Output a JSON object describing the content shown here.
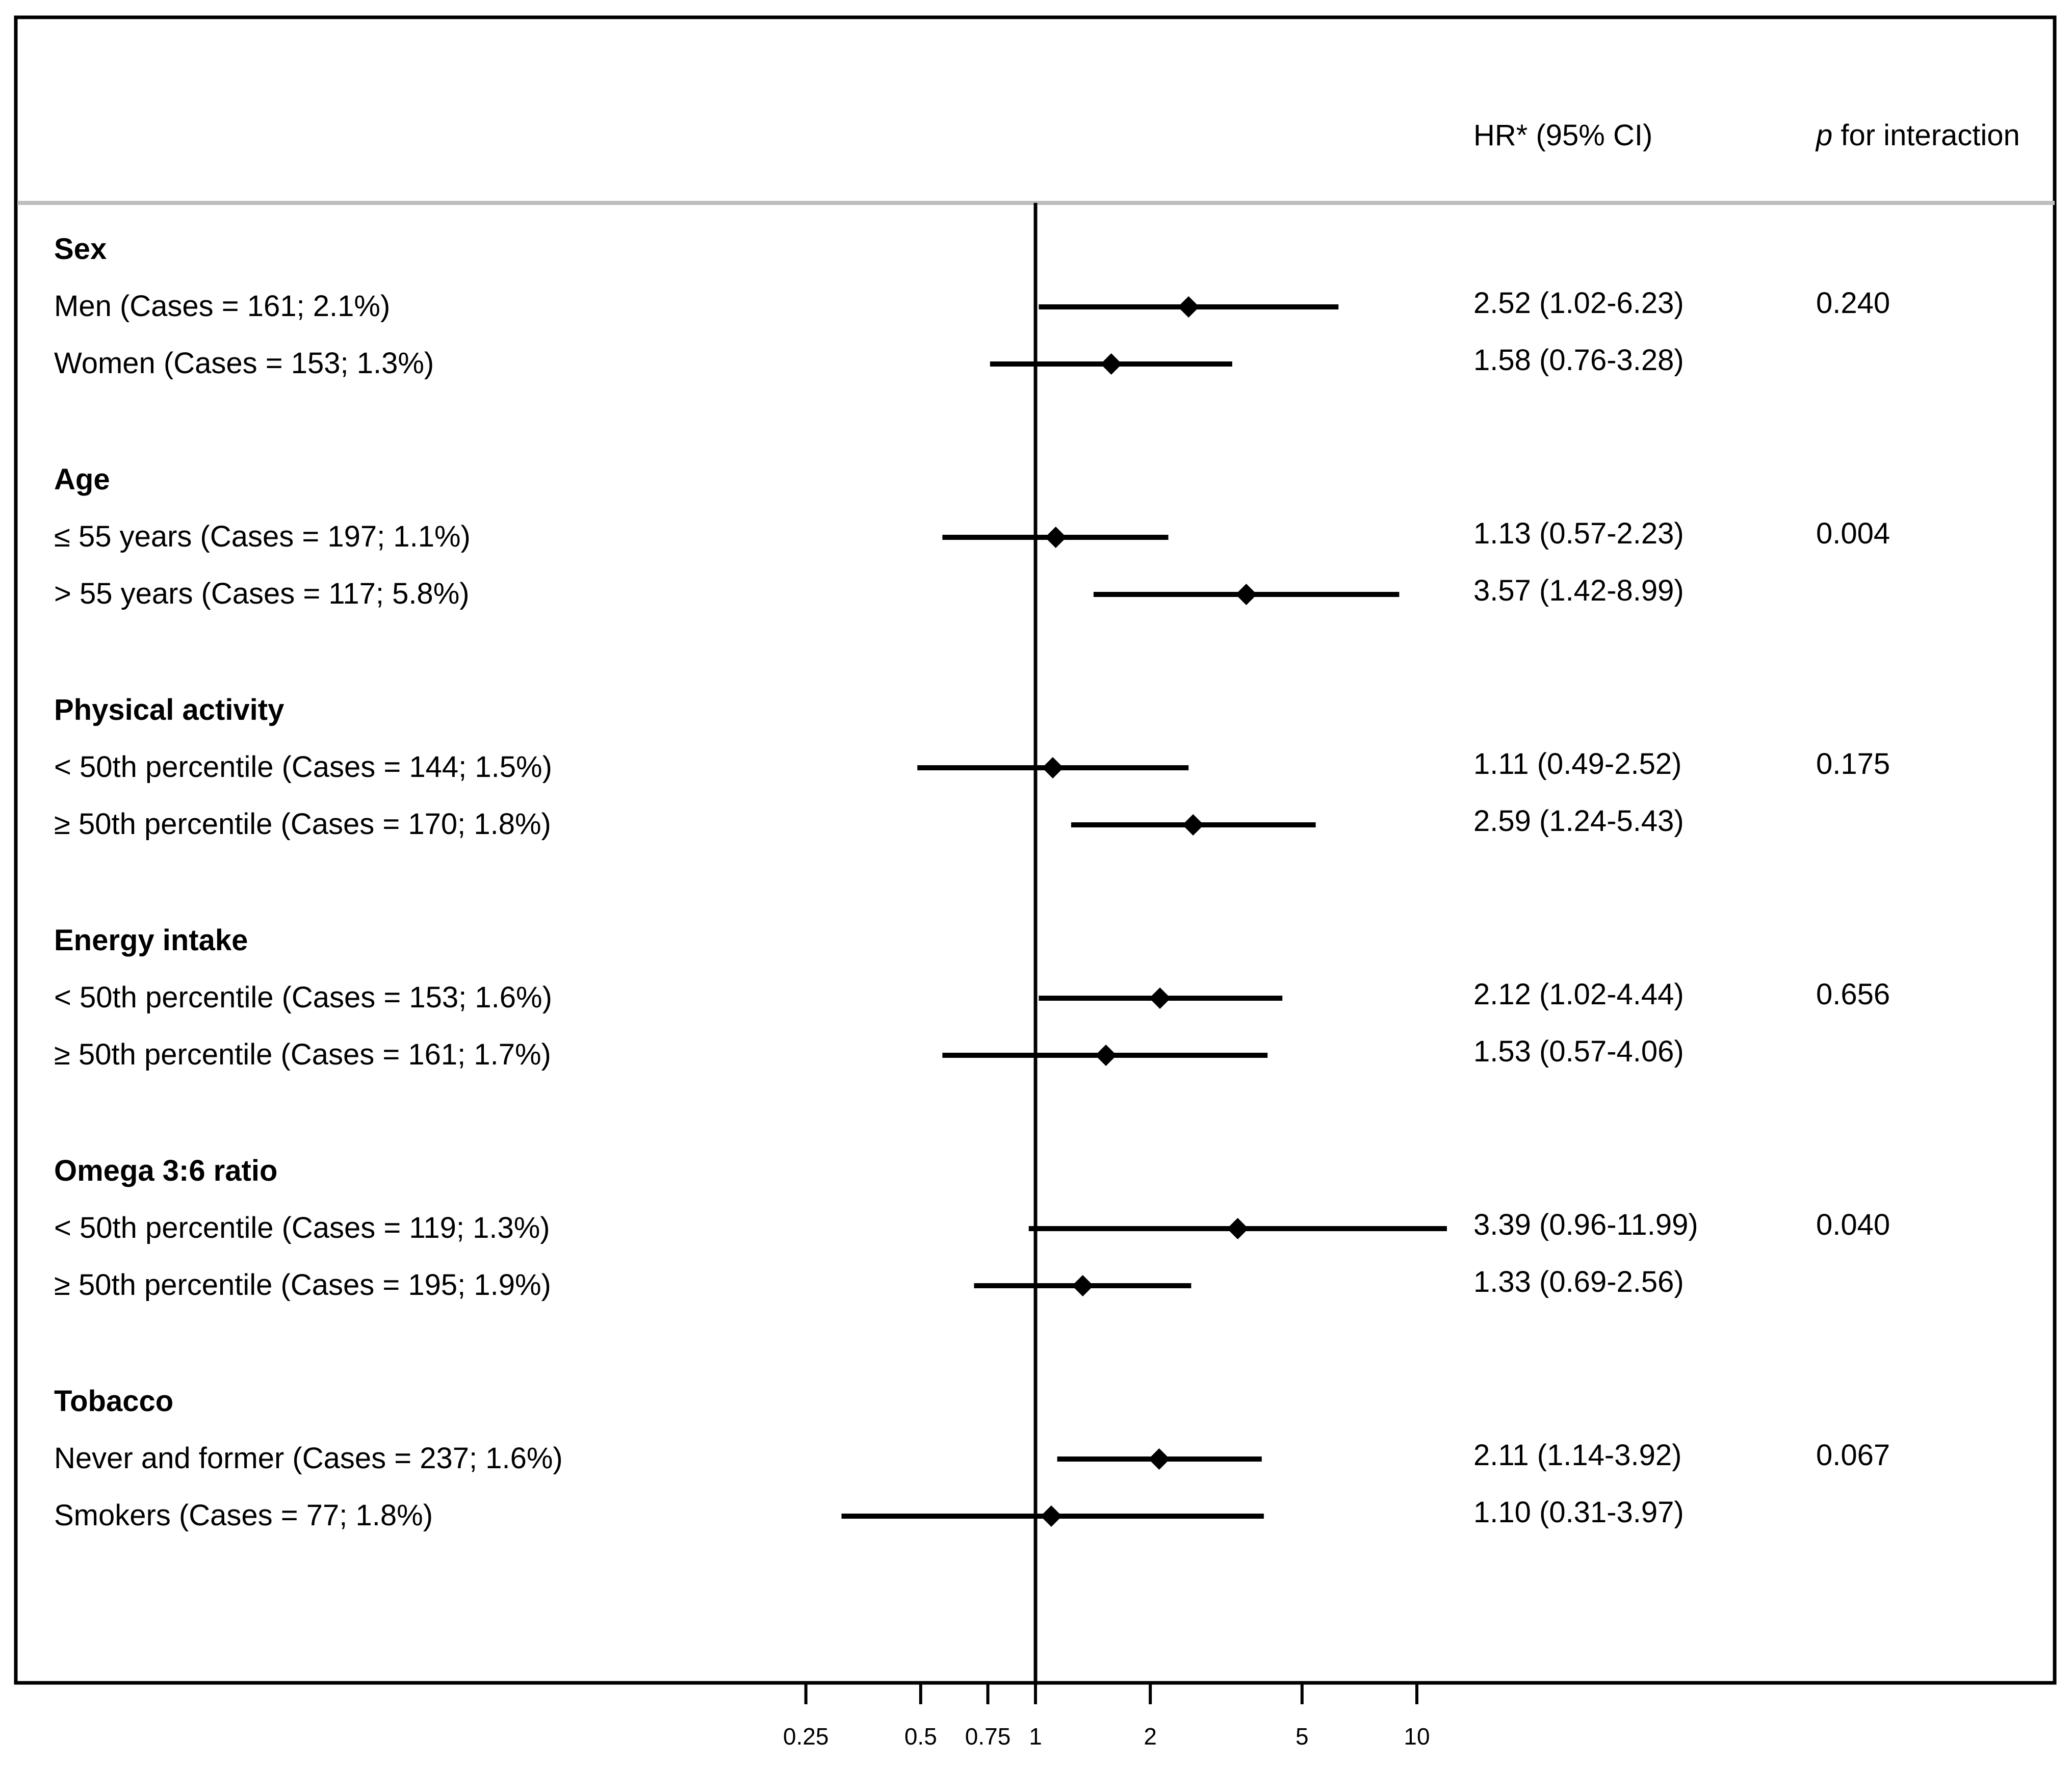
{
  "header": {
    "hr_label": "HR* (95% CI)",
    "p_label_italic": "p",
    "p_label_rest": " for interaction"
  },
  "colors": {
    "line": "#000000",
    "separator": "#bdbdbd",
    "background": "#ffffff"
  },
  "chart_data": {
    "type": "forest",
    "x_scale": "log",
    "xlim": [
      0.25,
      10
    ],
    "reference_line": 1,
    "ticks": [
      {
        "value": 0.25,
        "label": "0.25"
      },
      {
        "value": 0.5,
        "label": "0.5"
      },
      {
        "value": 0.75,
        "label": "0.75"
      },
      {
        "value": 1,
        "label": "1"
      },
      {
        "value": 2,
        "label": "2"
      },
      {
        "value": 5,
        "label": "5"
      },
      {
        "value": 10,
        "label": "10"
      }
    ],
    "groups": [
      {
        "name": "Sex",
        "rows": [
          {
            "label": "Men (Cases = 161; 2.1%)",
            "hr": 2.52,
            "lo": 1.02,
            "hi": 6.23,
            "hr_text": "2.52 (1.02-6.23)",
            "p": "0.240"
          },
          {
            "label": "Women (Cases = 153; 1.3%)",
            "hr": 1.58,
            "lo": 0.76,
            "hi": 3.28,
            "hr_text": "1.58 (0.76-3.28)",
            "p": ""
          }
        ]
      },
      {
        "name": "Age",
        "rows": [
          {
            "label": "≤ 55 years (Cases = 197; 1.1%)",
            "hr": 1.13,
            "lo": 0.57,
            "hi": 2.23,
            "hr_text": "1.13 (0.57-2.23)",
            "p": "0.004"
          },
          {
            "label": "> 55 years (Cases = 117; 5.8%)",
            "hr": 3.57,
            "lo": 1.42,
            "hi": 8.99,
            "hr_text": "3.57 (1.42-8.99)",
            "p": ""
          }
        ]
      },
      {
        "name": "Physical activity",
        "rows": [
          {
            "label": "< 50th percentile (Cases = 144; 1.5%)",
            "hr": 1.11,
            "lo": 0.49,
            "hi": 2.52,
            "hr_text": "1.11 (0.49-2.52)",
            "p": "0.175"
          },
          {
            "label": "≥ 50th percentile (Cases = 170; 1.8%)",
            "hr": 2.59,
            "lo": 1.24,
            "hi": 5.43,
            "hr_text": "2.59 (1.24-5.43)",
            "p": ""
          }
        ]
      },
      {
        "name": "Energy intake",
        "rows": [
          {
            "label": "< 50th percentile (Cases = 153; 1.6%)",
            "hr": 2.12,
            "lo": 1.02,
            "hi": 4.44,
            "hr_text": "2.12 (1.02-4.44)",
            "p": "0.656"
          },
          {
            "label": "≥ 50th percentile (Cases = 161; 1.7%)",
            "hr": 1.53,
            "lo": 0.57,
            "hi": 4.06,
            "hr_text": "1.53 (0.57-4.06)",
            "p": ""
          }
        ]
      },
      {
        "name": "Omega 3:6 ratio",
        "rows": [
          {
            "label": "< 50th percentile (Cases = 119; 1.3%)",
            "hr": 3.39,
            "lo": 0.96,
            "hi": 11.99,
            "hr_text": "3.39 (0.96-11.99)",
            "p": "0.040"
          },
          {
            "label": "≥ 50th percentile (Cases = 195; 1.9%)",
            "hr": 1.33,
            "lo": 0.69,
            "hi": 2.56,
            "hr_text": "1.33 (0.69-2.56)",
            "p": ""
          }
        ]
      },
      {
        "name": "Tobacco",
        "rows": [
          {
            "label": "Never and former (Cases = 237; 1.6%)",
            "hr": 2.11,
            "lo": 1.14,
            "hi": 3.92,
            "hr_text": "2.11 (1.14-3.92)",
            "p": "0.067"
          },
          {
            "label": "Smokers (Cases = 77; 1.8%)",
            "hr": 1.1,
            "lo": 0.31,
            "hi": 3.97,
            "hr_text": "1.10 (0.31-3.97)",
            "p": ""
          }
        ]
      }
    ]
  }
}
